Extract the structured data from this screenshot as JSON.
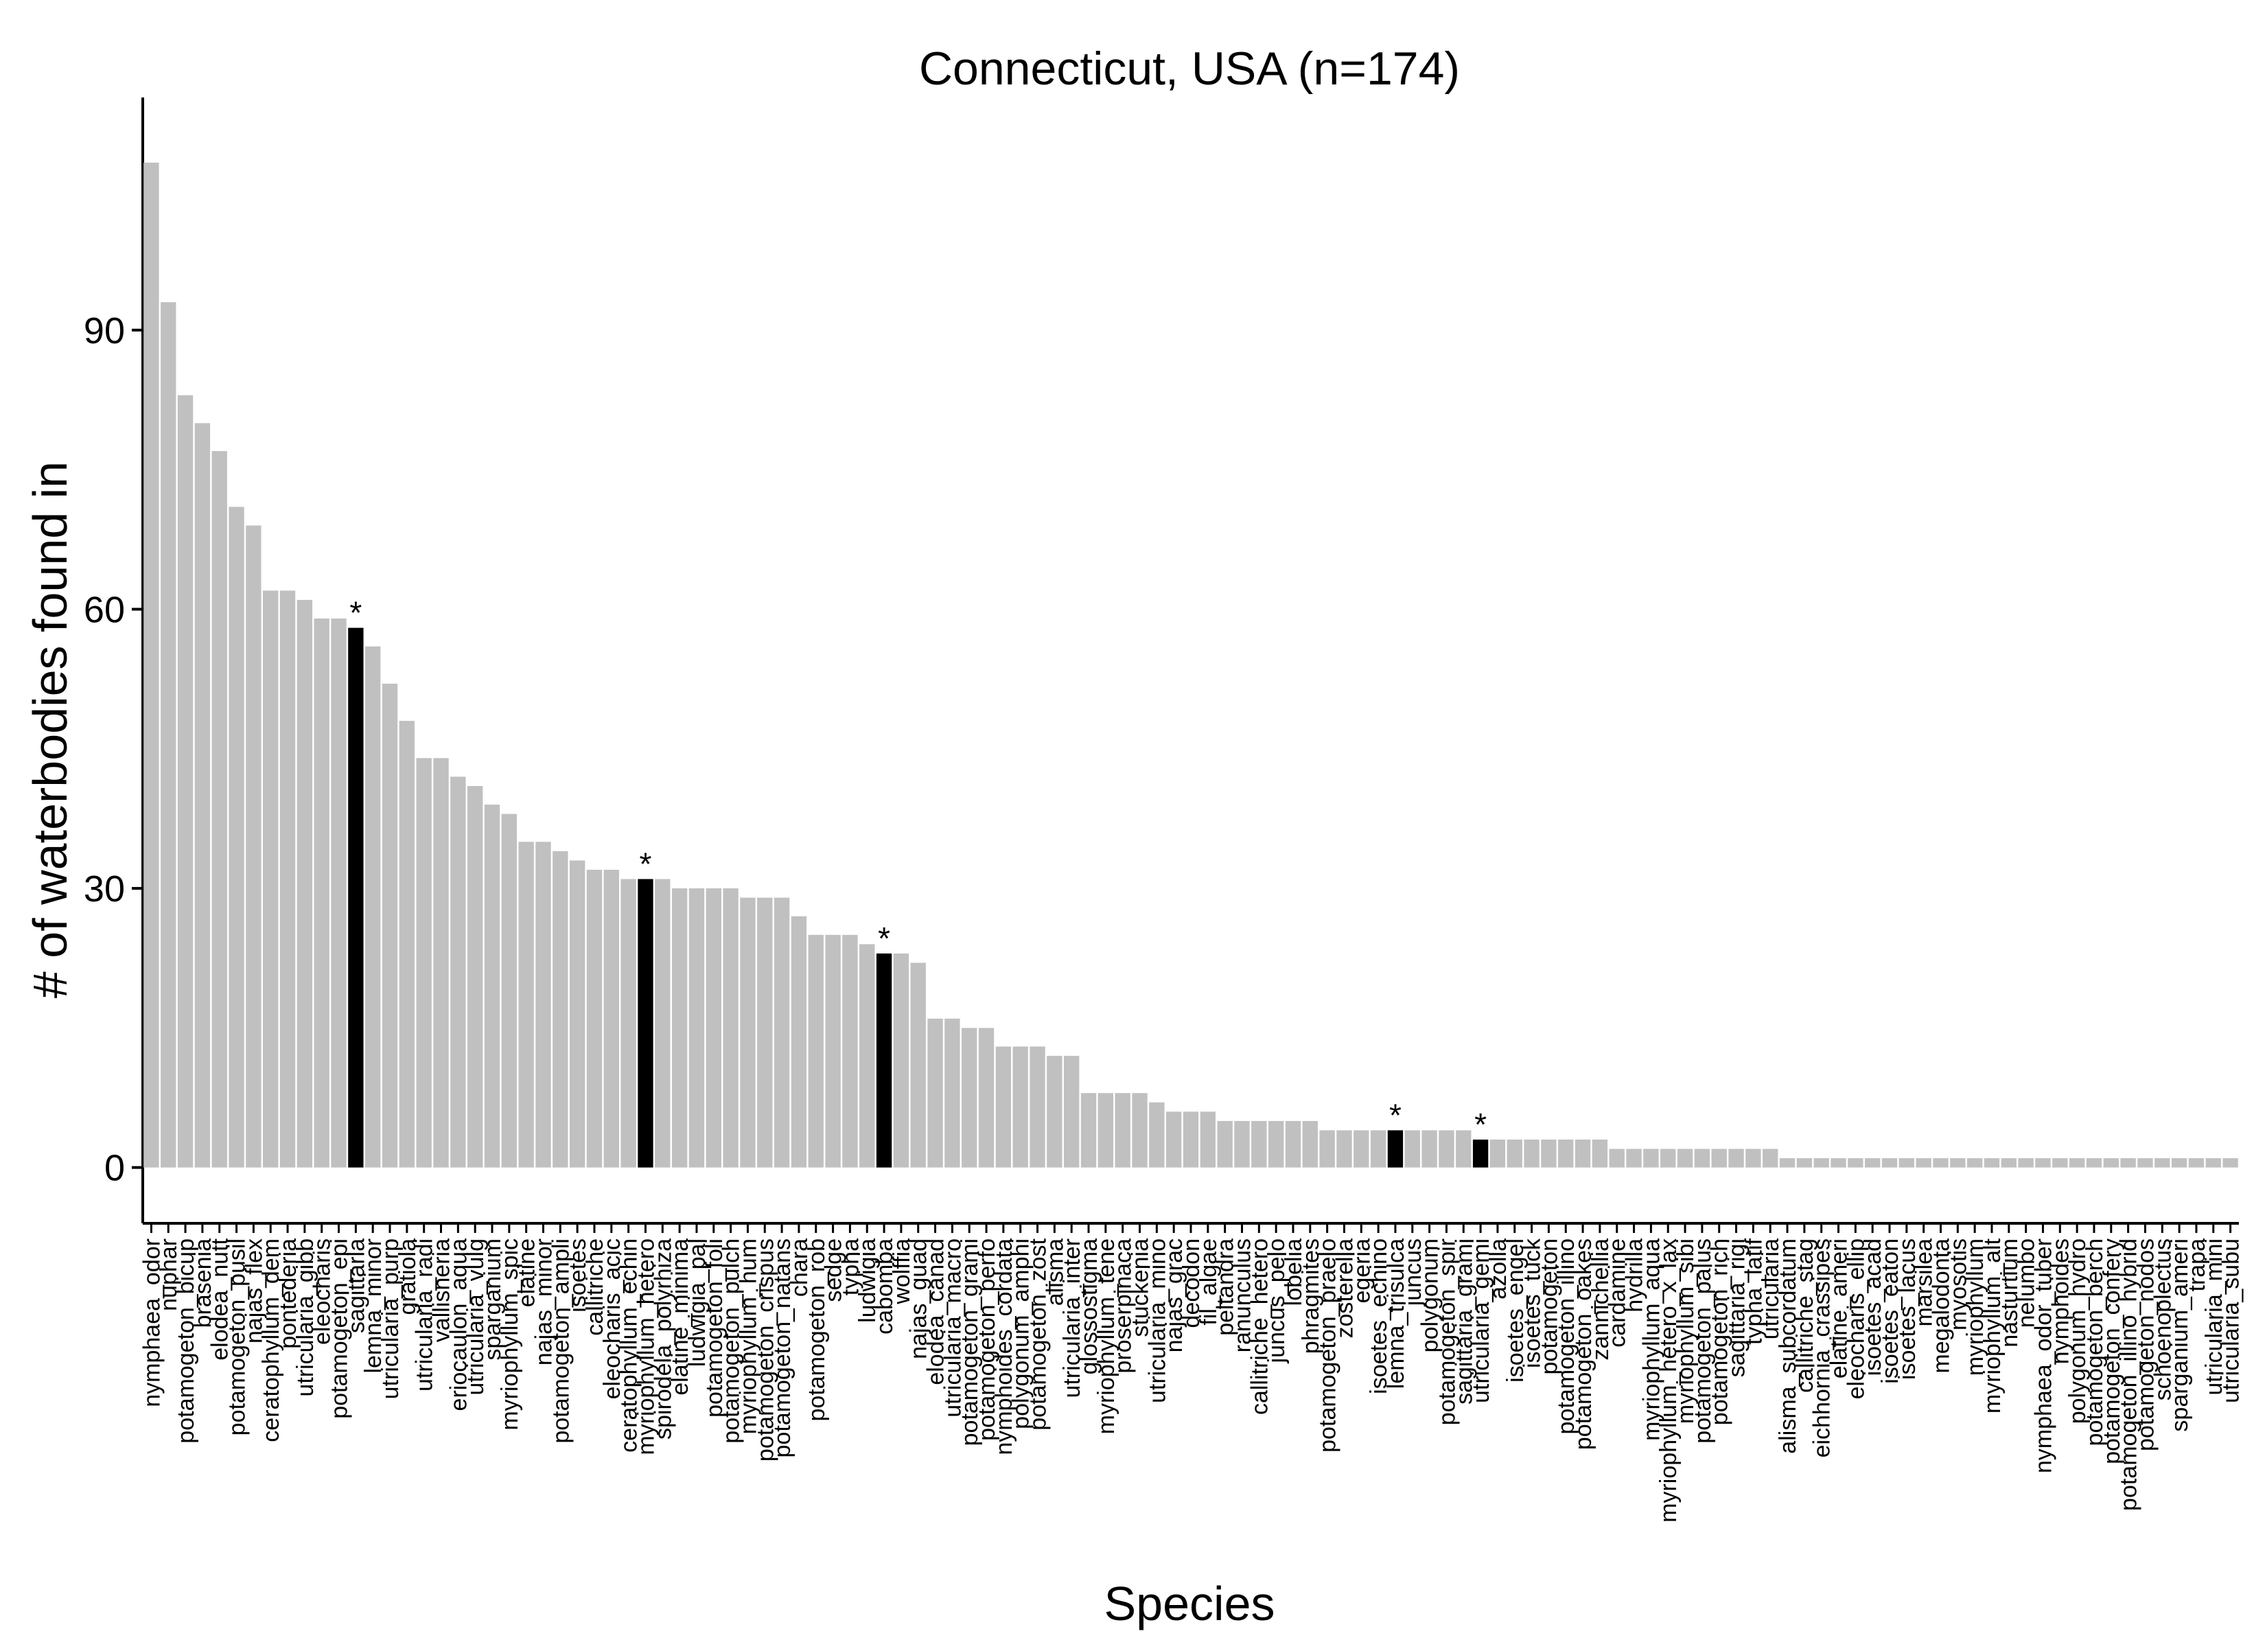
{
  "chart_data": {
    "type": "bar",
    "title": "Connecticut, USA (n=174)",
    "xlabel": "Species",
    "ylabel": "# of waterbodies found in",
    "ylim": [
      -6,
      115
    ],
    "y_ticks": [
      0,
      30,
      60,
      90
    ],
    "grid": false,
    "legend": "none",
    "colors": {
      "default": "#c0c0c0",
      "highlight": "#000000"
    },
    "highlight_marker": "*",
    "categories": [
      "nymphaea_odor",
      "nuphar",
      "potamogeton_bicup",
      "brasenia",
      "elodea_nutt",
      "potamogeton_pusil",
      "najas_flex",
      "ceratophyllum_dem",
      "pontederia",
      "utricularia_gibb",
      "eleocharis",
      "potamogeton_epi",
      "sagittaria",
      "lemna_minor",
      "utricularia_purp",
      "gratiola",
      "utricularia_radi",
      "vallisneria",
      "eriocaulon_aqua",
      "utricularia_vulg",
      "sparganium",
      "myriophyllum_spic",
      "elatine",
      "najas_minor",
      "potamogeton_ampli",
      "isoetes",
      "callitriche",
      "eleocharis_acic",
      "ceratophyllum_echin",
      "myriophyllum_hetero",
      "spirodela_polyrhiza",
      "elatine_minima",
      "ludwigia_pal",
      "potamogeton_foli",
      "potamogeton_pulch",
      "myriophyllum_hum",
      "potamogeton_crispus",
      "potamogeton_natans",
      "chara",
      "potamogeton_rob",
      "sedge",
      "typha",
      "ludwigia",
      "cabomba",
      "wolffia",
      "najas_guad",
      "elodea_canad",
      "utricularia_macro",
      "potamogeton_grami",
      "potamogeton_perfo",
      "nymphoides_cordata",
      "polygonum_amphi",
      "potamogeton_zost",
      "alisma",
      "utricularia_inter",
      "glossostigma",
      "myriophyllum_tene",
      "proserpinaca",
      "stuckenia",
      "utricularia_mino",
      "najas_grac",
      "decodon",
      "fil_algae",
      "peltandra",
      "ranunculus",
      "callitriche_hetero",
      "juncus_pelo",
      "lobelia",
      "phragmites",
      "potamogeton_praelo",
      "zosterella",
      "egeria",
      "isoetes_echino",
      "lemna_trisulca",
      "juncus",
      "polygonum",
      "potamogeton_spir",
      "sagittaria_grami",
      "utricularia_gemi",
      "azolla",
      "isoetes_engel",
      "isoetes_tuck",
      "potamogeton",
      "potamogeton_illino",
      "potamogeton_oakes",
      "zannichellia",
      "cardamine",
      "hydrilla",
      "myriophyllum_aqua",
      "myriophyllum_hetero_x_lax",
      "myriophyllum_sibi",
      "potamogeton_palus",
      "potamogeton_rich",
      "sagittaria_rigi",
      "typha_latif",
      "utricularia",
      "alisma_subcordatum",
      "callitriche_stag",
      "eichhornia_crassipes",
      "elatine_ameri",
      "eleocharis_ellip",
      "isoetes_acad",
      "isoetes_eaton",
      "isoetes_lacus",
      "marsilea",
      "megalodonta",
      "myosotis",
      "myriophyllum",
      "myriophyllum_alt",
      "nasturtium",
      "nelumbo",
      "nymphaea_odor_tuber",
      "nymphoides",
      "polygonum_hydro",
      "potamogeton_berch",
      "potamogeton_confery",
      "potamogeton_illino_hybrid",
      "potamogeton_nodos",
      "schoenoplectus",
      "sparganium_ameri",
      "trapa",
      "utricularia_mini",
      "utricularia_subu"
    ],
    "values": [
      108,
      93,
      83,
      80,
      77,
      71,
      69,
      62,
      62,
      61,
      59,
      59,
      58,
      56,
      52,
      48,
      44,
      44,
      42,
      41,
      39,
      38,
      35,
      35,
      34,
      33,
      32,
      32,
      31,
      31,
      31,
      30,
      30,
      30,
      30,
      29,
      29,
      29,
      27,
      25,
      25,
      25,
      24,
      23,
      23,
      22,
      16,
      16,
      15,
      15,
      13,
      13,
      13,
      12,
      12,
      8,
      8,
      8,
      8,
      7,
      6,
      6,
      6,
      5,
      5,
      5,
      5,
      5,
      5,
      4,
      4,
      4,
      4,
      4,
      4,
      4,
      4,
      4,
      3,
      3,
      3,
      3,
      3,
      3,
      3,
      3,
      2,
      2,
      2,
      2,
      2,
      2,
      2,
      2,
      2,
      2,
      1,
      1,
      1,
      1,
      1,
      1,
      1,
      1,
      1,
      1,
      1,
      1,
      1,
      1,
      1,
      1,
      1,
      1,
      1,
      1,
      1,
      1,
      1,
      1,
      1,
      1,
      1
    ],
    "highlighted": [
      "sagittaria",
      "myriophyllum_hetero",
      "cabomba",
      "lemna_trisulca",
      "utricularia_gemi"
    ]
  }
}
